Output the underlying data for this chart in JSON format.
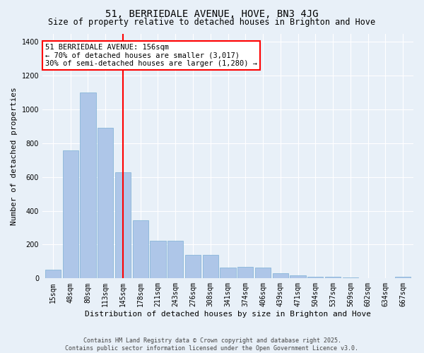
{
  "title": "51, BERRIEDALE AVENUE, HOVE, BN3 4JG",
  "subtitle": "Size of property relative to detached houses in Brighton and Hove",
  "xlabel": "Distribution of detached houses by size in Brighton and Hove",
  "ylabel": "Number of detached properties",
  "categories": [
    "15sqm",
    "48sqm",
    "80sqm",
    "113sqm",
    "145sqm",
    "178sqm",
    "211sqm",
    "243sqm",
    "276sqm",
    "308sqm",
    "341sqm",
    "374sqm",
    "406sqm",
    "439sqm",
    "471sqm",
    "504sqm",
    "537sqm",
    "569sqm",
    "602sqm",
    "634sqm",
    "667sqm"
  ],
  "values": [
    50,
    760,
    1100,
    890,
    630,
    345,
    225,
    225,
    140,
    140,
    65,
    70,
    65,
    30,
    20,
    10,
    8,
    5,
    2,
    0,
    10
  ],
  "bar_color": "#aec6e8",
  "bar_edgecolor": "#7bafd4",
  "vline_x_index": 4,
  "vline_color": "red",
  "annotation_text": "51 BERRIEDALE AVENUE: 156sqm\n← 70% of detached houses are smaller (3,017)\n30% of semi-detached houses are larger (1,280) →",
  "annotation_box_edgecolor": "red",
  "annotation_box_facecolor": "white",
  "ylim": [
    0,
    1450
  ],
  "yticks": [
    0,
    200,
    400,
    600,
    800,
    1000,
    1200,
    1400
  ],
  "background_color": "#e8f0f8",
  "grid_color": "white",
  "footer_text": "Contains HM Land Registry data © Crown copyright and database right 2025.\nContains public sector information licensed under the Open Government Licence v3.0.",
  "title_fontsize": 10,
  "subtitle_fontsize": 8.5,
  "xlabel_fontsize": 8,
  "ylabel_fontsize": 8,
  "tick_fontsize": 7,
  "annotation_fontsize": 7.5,
  "footer_fontsize": 6
}
